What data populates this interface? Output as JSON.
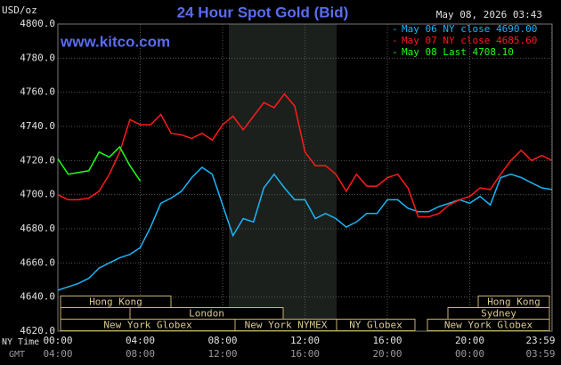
{
  "chart_data": {
    "type": "line",
    "title": "24 Hour Spot Gold (Bid)",
    "timestamp": "May 08, 2026 03:43",
    "watermark": "www.kitco.com",
    "y_label": "USD/oz",
    "x_row_label": "NY Time",
    "x2_row_label": "GMT",
    "xlim": [
      0,
      24
    ],
    "ylim": [
      4620,
      4800
    ],
    "xticks": [
      {
        "value": 0,
        "label": "00:00"
      },
      {
        "value": 4,
        "label": "04:00"
      },
      {
        "value": 8,
        "label": "08:00"
      },
      {
        "value": 12,
        "label": "12:00"
      },
      {
        "value": 16,
        "label": "16:00"
      },
      {
        "value": 20,
        "label": "20:00"
      },
      {
        "value": 23.983,
        "label": "23:59"
      }
    ],
    "x2_tick_labels": [
      "04:00",
      "08:00",
      "12:00",
      "16:00",
      "20:00",
      "00:00",
      "03:59"
    ],
    "yticks": [
      {
        "value": 4620,
        "label": "4620.0"
      },
      {
        "value": 4640,
        "label": "4640.0"
      },
      {
        "value": 4660,
        "label": "4660.0"
      },
      {
        "value": 4680,
        "label": "4680.0"
      },
      {
        "value": 4700,
        "label": "4700.0"
      },
      {
        "value": 4720,
        "label": "4720.0"
      },
      {
        "value": 4740,
        "label": "4740.0"
      },
      {
        "value": 4760,
        "label": "4760.0"
      },
      {
        "value": 4780,
        "label": "4780.0"
      },
      {
        "value": 4800,
        "label": "4800.0"
      }
    ],
    "grid": true,
    "sessions": [
      "Hong Kong",
      "London",
      "New York Globex",
      "New York NYMEX",
      "NY Globex",
      "Hong Kong",
      "Sydney",
      "New York Globex"
    ],
    "x": [
      0,
      0.5,
      1,
      1.5,
      2,
      2.5,
      3,
      3.5,
      4,
      4.5,
      5,
      5.5,
      6,
      6.5,
      7,
      7.5,
      8,
      8.5,
      9,
      9.5,
      10,
      10.5,
      11,
      11.5,
      12,
      12.5,
      13,
      13.5,
      14,
      14.5,
      15,
      15.5,
      16,
      16.5,
      17,
      17.5,
      18,
      18.5,
      19,
      19.5,
      20,
      20.5,
      21,
      21.5,
      22,
      22.5,
      23,
      23.5,
      24
    ],
    "series": [
      {
        "name": "May 06 NY close 4690.00",
        "color": "#19b5f5",
        "values": [
          4644,
          4646,
          4648,
          4651,
          4657,
          4660,
          4663,
          4665,
          4669,
          4681,
          4695,
          4698,
          4702,
          4710,
          4716,
          4712,
          4694,
          4676,
          4686,
          4684,
          4704,
          4712,
          4704,
          4697,
          4697,
          4686,
          4689,
          4686,
          4681,
          4684,
          4689,
          4689,
          4697,
          4697,
          4692,
          4690,
          4690,
          4693,
          4695,
          4697,
          4695,
          4699,
          4694,
          4710,
          4712,
          4710,
          4707,
          4704,
          4703
        ]
      },
      {
        "name": "May 07 NY close 4685.60",
        "color": "#ff1a1a",
        "values": [
          4700,
          4697,
          4697,
          4698,
          4702,
          4712,
          4725,
          4744,
          4741,
          4741,
          4747,
          4736,
          4735,
          4733,
          4736,
          4732,
          4741,
          4746,
          4738,
          4746,
          4754,
          4751,
          4759,
          4752,
          4725,
          4717,
          4717,
          4712,
          4702,
          4712,
          4705,
          4705,
          4710,
          4712,
          4704,
          4687,
          4687,
          4689,
          4694,
          4697,
          4699,
          4704,
          4703,
          4712,
          4720,
          4726,
          4720,
          4723,
          4720
        ]
      },
      {
        "name": "May 08 Last 4708.10",
        "color": "#1aff1a",
        "values": [
          4721,
          4712,
          4713,
          4714,
          4725,
          4722,
          4728,
          4717,
          4708,
          null,
          null,
          null,
          null,
          null,
          null,
          null,
          null,
          null,
          null,
          null,
          null,
          null,
          null,
          null,
          null,
          null,
          null,
          null,
          null,
          null,
          null,
          null,
          null,
          null,
          null,
          null,
          null,
          null,
          null,
          null,
          null,
          null,
          null,
          null,
          null,
          null,
          null,
          null,
          null
        ]
      }
    ]
  }
}
